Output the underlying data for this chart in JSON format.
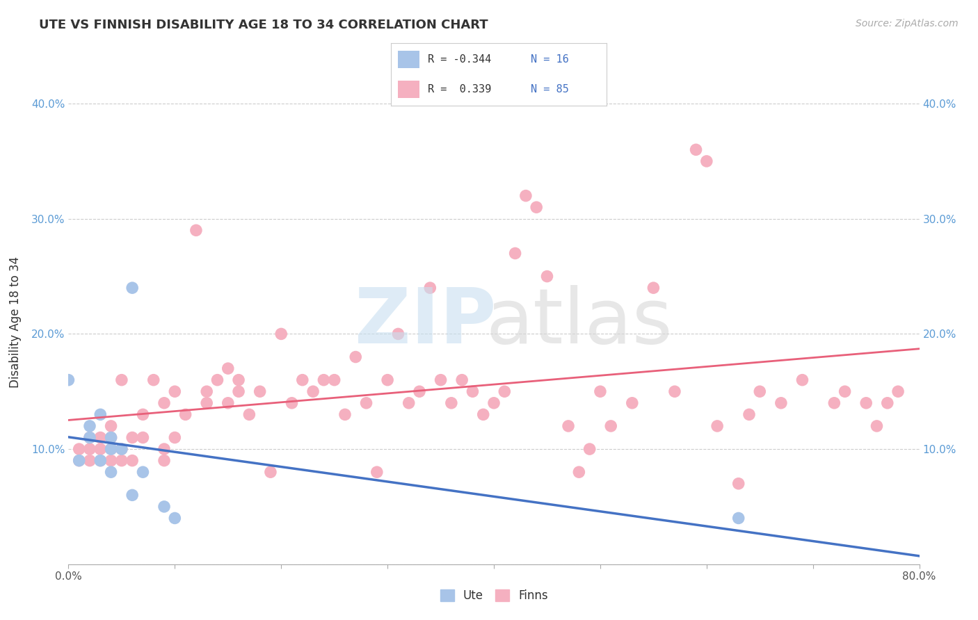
{
  "title": "UTE VS FINNISH DISABILITY AGE 18 TO 34 CORRELATION CHART",
  "source_text": "Source: ZipAtlas.com",
  "xlabel": "",
  "ylabel": "Disability Age 18 to 34",
  "xlim": [
    0.0,
    0.8
  ],
  "ylim": [
    0.0,
    0.42
  ],
  "yticks": [
    0.0,
    0.1,
    0.2,
    0.3,
    0.4
  ],
  "xticks": [
    0.0,
    0.1,
    0.2,
    0.3,
    0.4,
    0.5,
    0.6,
    0.7,
    0.8
  ],
  "xtick_labels": [
    "0.0%",
    "",
    "",
    "",
    "",
    "",
    "",
    "",
    "80.0%"
  ],
  "ytick_labels_left": [
    "",
    "10.0%",
    "20.0%",
    "30.0%",
    "40.0%"
  ],
  "ytick_labels_right": [
    "",
    "10.0%",
    "20.0%",
    "30.0%",
    "40.0%"
  ],
  "ute_color": "#a8c4e8",
  "finn_color": "#f5b0c0",
  "ute_line_color": "#4472c4",
  "finn_line_color": "#e8607a",
  "legend_R_ute": "-0.344",
  "legend_N_ute": "16",
  "legend_R_finn": "0.339",
  "legend_N_finn": "85",
  "ute_x": [
    0.0,
    0.01,
    0.02,
    0.02,
    0.03,
    0.03,
    0.04,
    0.04,
    0.04,
    0.05,
    0.06,
    0.06,
    0.07,
    0.09,
    0.1,
    0.63
  ],
  "ute_y": [
    0.16,
    0.09,
    0.12,
    0.11,
    0.13,
    0.09,
    0.11,
    0.1,
    0.08,
    0.1,
    0.24,
    0.06,
    0.08,
    0.05,
    0.04,
    0.04
  ],
  "finn_x": [
    0.01,
    0.01,
    0.02,
    0.02,
    0.02,
    0.03,
    0.03,
    0.03,
    0.04,
    0.04,
    0.04,
    0.04,
    0.05,
    0.05,
    0.05,
    0.06,
    0.06,
    0.07,
    0.07,
    0.08,
    0.09,
    0.09,
    0.09,
    0.1,
    0.1,
    0.11,
    0.12,
    0.13,
    0.13,
    0.14,
    0.15,
    0.15,
    0.16,
    0.16,
    0.17,
    0.18,
    0.19,
    0.2,
    0.21,
    0.22,
    0.23,
    0.24,
    0.25,
    0.26,
    0.27,
    0.28,
    0.29,
    0.3,
    0.31,
    0.32,
    0.33,
    0.34,
    0.35,
    0.36,
    0.37,
    0.38,
    0.39,
    0.4,
    0.41,
    0.42,
    0.43,
    0.44,
    0.45,
    0.47,
    0.48,
    0.49,
    0.5,
    0.51,
    0.53,
    0.55,
    0.57,
    0.59,
    0.6,
    0.61,
    0.63,
    0.64,
    0.65,
    0.67,
    0.69,
    0.72,
    0.73,
    0.75,
    0.76,
    0.77,
    0.78
  ],
  "finn_y": [
    0.09,
    0.1,
    0.09,
    0.1,
    0.11,
    0.09,
    0.1,
    0.11,
    0.09,
    0.1,
    0.11,
    0.12,
    0.09,
    0.1,
    0.16,
    0.09,
    0.11,
    0.11,
    0.13,
    0.16,
    0.09,
    0.1,
    0.14,
    0.11,
    0.15,
    0.13,
    0.29,
    0.14,
    0.15,
    0.16,
    0.14,
    0.17,
    0.15,
    0.16,
    0.13,
    0.15,
    0.08,
    0.2,
    0.14,
    0.16,
    0.15,
    0.16,
    0.16,
    0.13,
    0.18,
    0.14,
    0.08,
    0.16,
    0.2,
    0.14,
    0.15,
    0.24,
    0.16,
    0.14,
    0.16,
    0.15,
    0.13,
    0.14,
    0.15,
    0.27,
    0.32,
    0.31,
    0.25,
    0.12,
    0.08,
    0.1,
    0.15,
    0.12,
    0.14,
    0.24,
    0.15,
    0.36,
    0.35,
    0.12,
    0.07,
    0.13,
    0.15,
    0.14,
    0.16,
    0.14,
    0.15,
    0.14,
    0.12,
    0.14,
    0.15
  ]
}
